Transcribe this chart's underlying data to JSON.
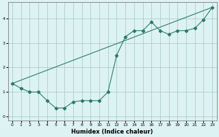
{
  "xlabel": "Humidex (Indice chaleur)",
  "background_color": "#ddf2f2",
  "grid_color": "#aacccc",
  "line_color": "#2a7a6a",
  "xlim": [
    -0.5,
    23.5
  ],
  "ylim": [
    -0.15,
    4.65
  ],
  "xticks": [
    0,
    1,
    2,
    3,
    4,
    5,
    6,
    7,
    8,
    9,
    10,
    11,
    12,
    13,
    14,
    15,
    16,
    17,
    18,
    19,
    20,
    21,
    22,
    23
  ],
  "yticks": [
    0,
    1,
    2,
    3,
    4
  ],
  "line1_x": [
    0,
    1,
    2,
    3,
    4,
    5,
    6,
    7,
    8,
    9,
    10,
    11,
    12,
    13,
    14,
    15,
    16,
    17,
    18,
    19,
    20,
    21,
    22,
    23
  ],
  "line1_y": [
    1.35,
    1.15,
    1.0,
    1.0,
    0.65,
    0.35,
    0.35,
    0.6,
    0.65,
    0.65,
    0.65,
    1.0,
    2.5,
    3.25,
    3.5,
    3.5,
    3.85,
    3.5,
    3.35,
    3.5,
    3.5,
    3.6,
    3.95,
    4.45
  ],
  "line2_x": [
    0,
    23
  ],
  "line2_y": [
    1.35,
    4.45
  ]
}
